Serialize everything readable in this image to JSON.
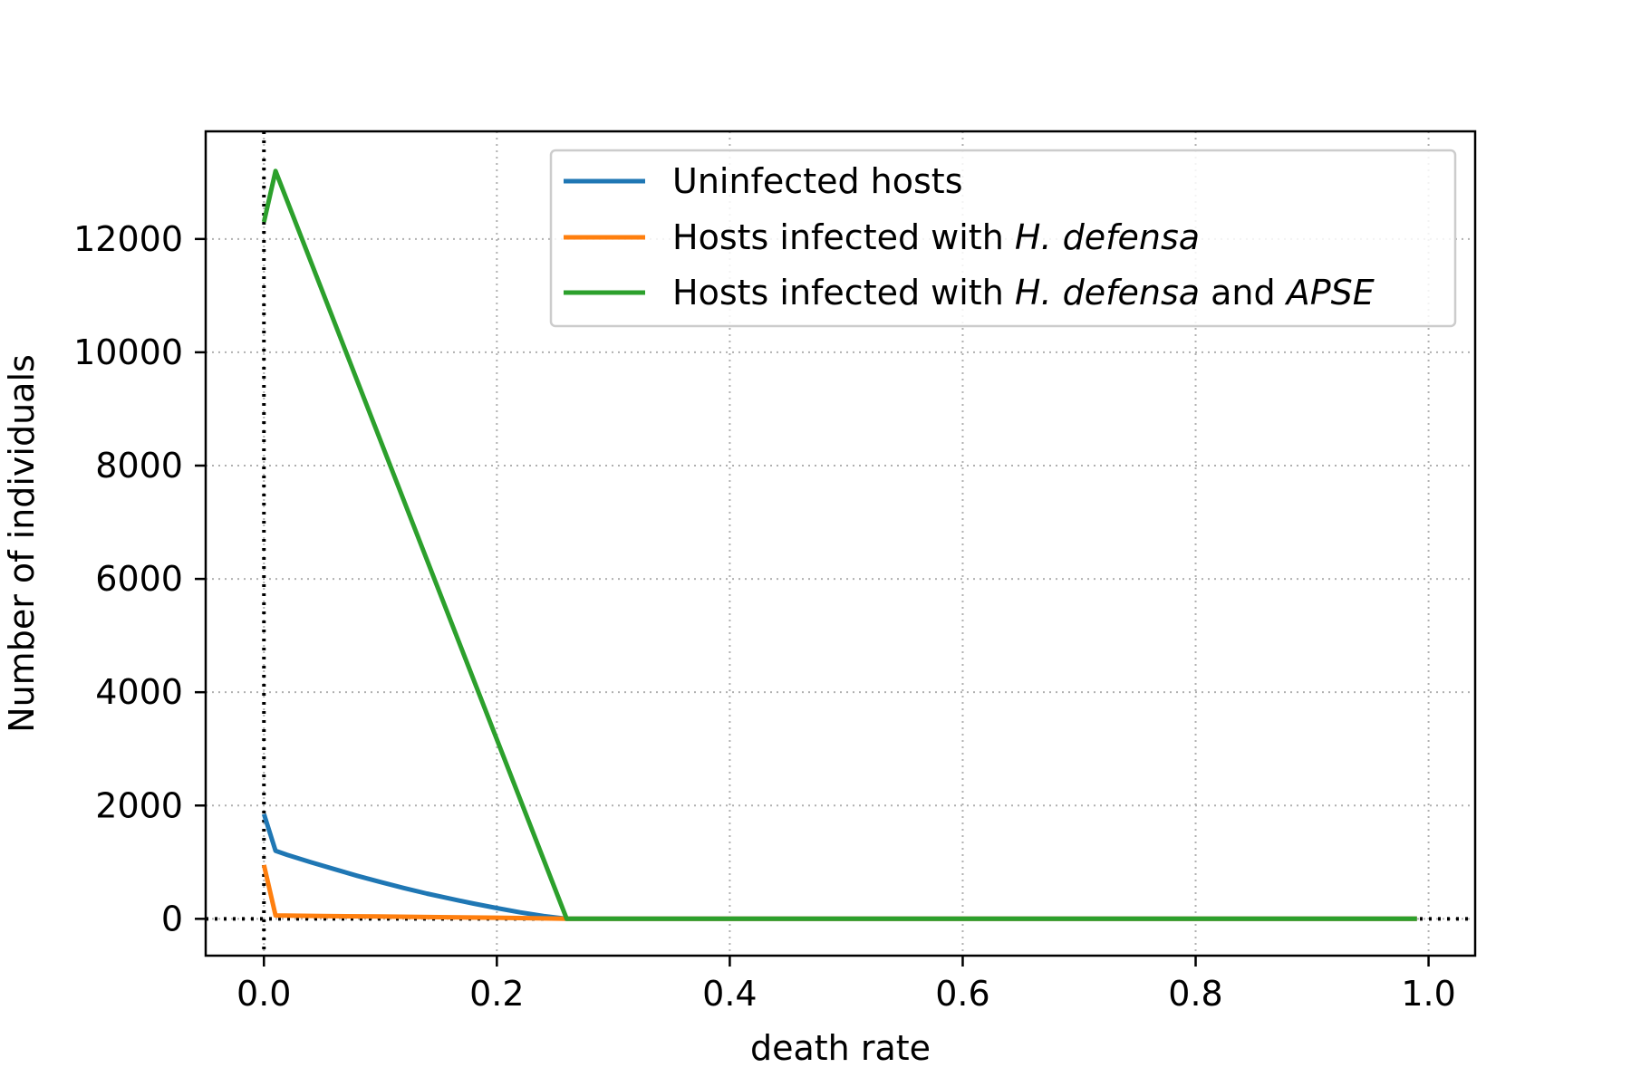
{
  "chart_data": {
    "type": "line",
    "xlabel": "death rate",
    "ylabel": "Number of individuals",
    "xlim": [
      -0.05,
      1.04
    ],
    "ylim": [
      -650,
      13900
    ],
    "xticks": [
      0.0,
      0.2,
      0.4,
      0.6,
      0.8,
      1.0
    ],
    "xtick_labels": [
      "0.0",
      "0.2",
      "0.4",
      "0.6",
      "0.8",
      "1.0"
    ],
    "yticks": [
      0,
      2000,
      4000,
      6000,
      8000,
      10000,
      12000
    ],
    "ytick_labels": [
      "0",
      "2000",
      "4000",
      "6000",
      "8000",
      "10000",
      "12000"
    ],
    "grid": true,
    "legend_position": "top-right",
    "reference_lines": [
      {
        "orientation": "vertical",
        "value": 0,
        "style": "dotted",
        "color": "#000000"
      },
      {
        "orientation": "horizontal",
        "value": 0,
        "style": "dotted",
        "color": "#000000"
      }
    ],
    "series": [
      {
        "legend": [
          {
            "text": "Uninfected hosts",
            "italic": false
          }
        ],
        "color": "#1f77b4",
        "x": [
          0.0,
          0.01,
          0.02,
          0.04,
          0.06,
          0.08,
          0.1,
          0.12,
          0.14,
          0.16,
          0.18,
          0.2,
          0.22,
          0.24,
          0.26,
          0.27,
          0.99
        ],
        "y": [
          1850,
          1200,
          1130,
          1000,
          880,
          760,
          650,
          545,
          445,
          355,
          270,
          190,
          115,
          50,
          0,
          0,
          0
        ]
      },
      {
        "legend": [
          {
            "text": "Hosts infected with ",
            "italic": false
          },
          {
            "text": "H. defensa",
            "italic": true
          }
        ],
        "color": "#ff7f0e",
        "x": [
          0.0,
          0.01,
          0.05,
          0.1,
          0.15,
          0.2,
          0.26,
          0.99
        ],
        "y": [
          950,
          60,
          50,
          40,
          30,
          20,
          0,
          0
        ]
      },
      {
        "legend": [
          {
            "text": "Hosts infected with ",
            "italic": false
          },
          {
            "text": "H. defensa",
            "italic": true
          },
          {
            "text": " and ",
            "italic": false
          },
          {
            "text": "APSE",
            "italic": true
          }
        ],
        "color": "#2ca02c",
        "x": [
          0.0,
          0.01,
          0.26,
          0.99
        ],
        "y": [
          12300,
          13200,
          0,
          0
        ]
      }
    ]
  }
}
